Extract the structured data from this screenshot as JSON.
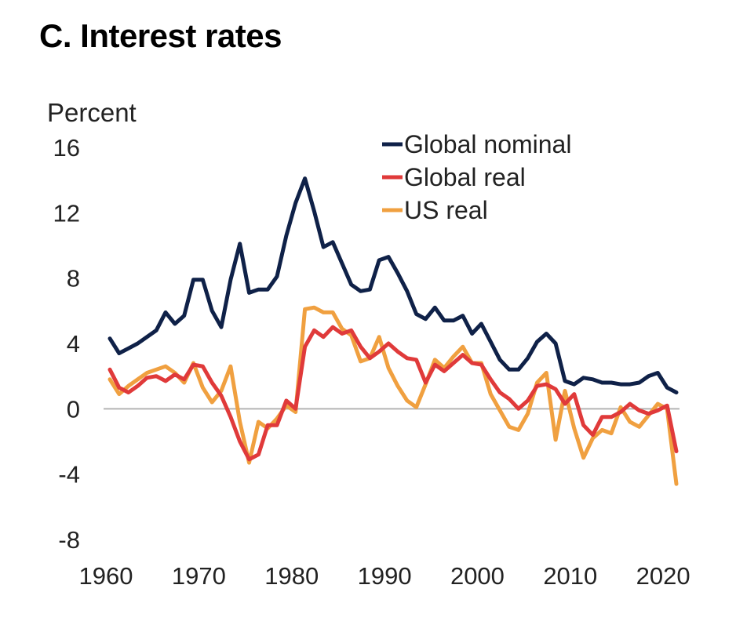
{
  "title": "C. Interest rates",
  "chart_data": {
    "type": "line",
    "title": "C. Interest rates",
    "ylabel": "Percent",
    "xlabel": "",
    "ylim": [
      -8,
      16
    ],
    "xlim": [
      1960,
      2021
    ],
    "y_ticks": [
      "16",
      "12",
      "8",
      "4",
      "0",
      "-4",
      "-8"
    ],
    "y_tick_values": [
      16,
      12,
      8,
      4,
      0,
      -4,
      -8
    ],
    "x_ticks": [
      "1960",
      "1970",
      "1980",
      "1990",
      "2000",
      "2010",
      "2020"
    ],
    "x_tick_values": [
      1960,
      1970,
      1980,
      1990,
      2000,
      2010,
      2020
    ],
    "grid": false,
    "zero_line": true,
    "legend_position": "top-right",
    "x": [
      1960,
      1961,
      1962,
      1963,
      1964,
      1965,
      1966,
      1967,
      1968,
      1969,
      1970,
      1971,
      1972,
      1973,
      1974,
      1975,
      1976,
      1977,
      1978,
      1979,
      1980,
      1981,
      1982,
      1983,
      1984,
      1985,
      1986,
      1987,
      1988,
      1989,
      1990,
      1991,
      1992,
      1993,
      1994,
      1995,
      1996,
      1997,
      1998,
      1999,
      2000,
      2001,
      2002,
      2003,
      2004,
      2005,
      2006,
      2007,
      2008,
      2009,
      2010,
      2011,
      2012,
      2013,
      2014,
      2015,
      2016,
      2017,
      2018,
      2019,
      2020,
      2021
    ],
    "series": [
      {
        "name": "Global nominal",
        "color": "#0f2148",
        "values": [
          4.3,
          3.4,
          3.7,
          4.0,
          4.4,
          4.8,
          5.9,
          5.2,
          5.7,
          7.9,
          7.9,
          6.0,
          5.0,
          7.9,
          10.1,
          7.1,
          7.3,
          7.3,
          8.1,
          10.6,
          12.6,
          14.1,
          12.1,
          9.9,
          10.2,
          8.9,
          7.6,
          7.2,
          7.3,
          9.1,
          9.3,
          8.3,
          7.2,
          5.8,
          5.5,
          6.2,
          5.4,
          5.4,
          5.7,
          4.6,
          5.2,
          4.1,
          3.0,
          2.4,
          2.4,
          3.1,
          4.1,
          4.6,
          4.0,
          1.7,
          1.5,
          1.9,
          1.8,
          1.6,
          1.6,
          1.5,
          1.5,
          1.6,
          2.0,
          2.2,
          1.3,
          1.0
        ]
      },
      {
        "name": "Global real",
        "color": "#e03a3a",
        "values": [
          2.4,
          1.3,
          1.0,
          1.4,
          1.9,
          2.0,
          1.7,
          2.1,
          1.8,
          2.7,
          2.6,
          1.6,
          0.8,
          -0.5,
          -2.0,
          -3.1,
          -2.8,
          -1.0,
          -1.0,
          0.5,
          0.0,
          3.8,
          4.8,
          4.4,
          5.0,
          4.6,
          4.8,
          3.8,
          3.1,
          3.5,
          4.0,
          3.5,
          3.1,
          3.0,
          1.6,
          2.7,
          2.3,
          2.8,
          3.3,
          2.8,
          2.7,
          1.8,
          1.0,
          0.6,
          0.0,
          0.5,
          1.4,
          1.5,
          1.2,
          0.3,
          0.9,
          -1.0,
          -1.6,
          -0.5,
          -0.5,
          -0.2,
          0.3,
          -0.1,
          -0.3,
          -0.1,
          0.2,
          -2.6
        ]
      },
      {
        "name": "US real",
        "color": "#f0a040",
        "values": [
          1.8,
          0.9,
          1.4,
          1.8,
          2.2,
          2.4,
          2.6,
          2.2,
          1.6,
          2.8,
          1.3,
          0.4,
          1.1,
          2.6,
          -0.8,
          -3.3,
          -0.8,
          -1.2,
          -0.6,
          0.2,
          -0.2,
          6.1,
          6.2,
          5.9,
          5.9,
          4.9,
          4.5,
          2.9,
          3.1,
          4.4,
          2.5,
          1.4,
          0.5,
          0.1,
          1.5,
          3.0,
          2.5,
          3.2,
          3.8,
          2.8,
          2.8,
          0.9,
          -0.1,
          -1.1,
          -1.3,
          -0.3,
          1.6,
          2.2,
          -1.9,
          1.1,
          -1.2,
          -3.0,
          -1.8,
          -1.3,
          -1.5,
          0.1,
          -0.8,
          -1.1,
          -0.4,
          0.3,
          0.0,
          -4.6
        ]
      }
    ]
  }
}
